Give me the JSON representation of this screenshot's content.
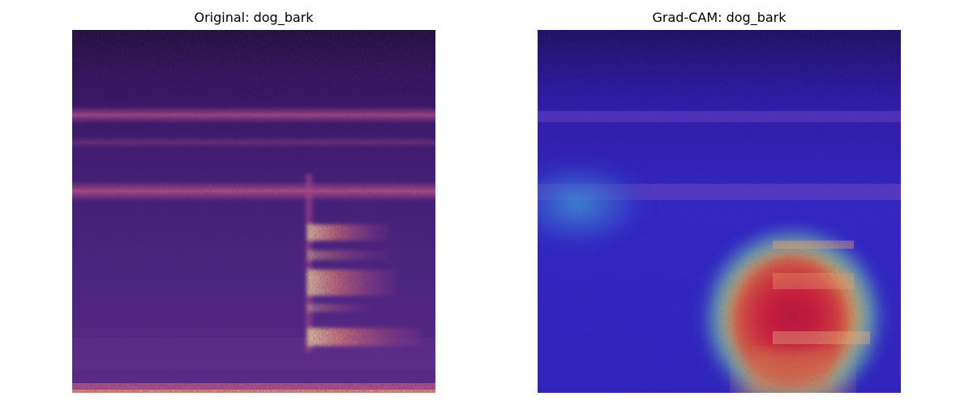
{
  "figure": {
    "panels": [
      {
        "title": "Original: dog_bark",
        "image": "mel-spectrogram (magma colormap)"
      },
      {
        "title": "Grad-CAM: dog_bark",
        "image": "mel-spectrogram with Grad-CAM heatmap overlay (jet colormap)"
      }
    ],
    "colors": {
      "spectrogram_dark": "#1c0a3a",
      "spectrogram_mid": "#5a2a8c",
      "spectrogram_band": "#c8508c",
      "spectrogram_bright": "#fcd07a",
      "heatmap_low": "#1e1ee6",
      "heatmap_mid": "#3cb4dc",
      "heatmap_high": "#e61e28"
    }
  }
}
